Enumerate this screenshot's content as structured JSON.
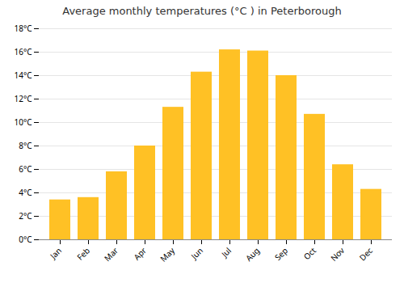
{
  "chart_data": {
    "type": "bar",
    "title": "Average monthly temperatures (°C ) in Peterborough",
    "categories": [
      "Jan",
      "Feb",
      "Mar",
      "Apr",
      "May",
      "Jun",
      "Jul",
      "Aug",
      "Sep",
      "Oct",
      "Nov",
      "Dec"
    ],
    "values": [
      3.4,
      3.6,
      5.8,
      8.0,
      11.3,
      14.3,
      16.2,
      16.1,
      14.0,
      10.7,
      6.4,
      4.3
    ],
    "color": "#FFC125",
    "ylim": [
      0,
      18
    ],
    "yticks": [
      {
        "value": 0,
        "label": "0°C"
      },
      {
        "value": 2,
        "label": "2°C"
      },
      {
        "value": 4,
        "label": "4°C"
      },
      {
        "value": 6,
        "label": "6°C"
      },
      {
        "value": 8,
        "label": "8°C"
      },
      {
        "value": 10,
        "label": "10°C"
      },
      {
        "value": 12,
        "label": "12°C"
      },
      {
        "value": 14,
        "label": "14°C"
      },
      {
        "value": 16,
        "label": "16°C"
      },
      {
        "value": 18,
        "label": "18°C"
      }
    ],
    "grid": true
  }
}
